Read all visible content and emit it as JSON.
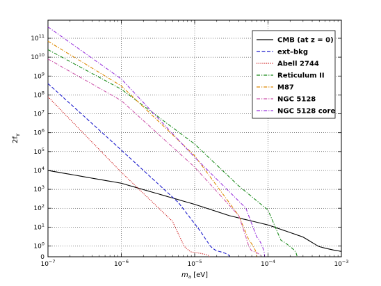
{
  "chart_data": {
    "type": "line",
    "title": "",
    "xlabel_main": "m",
    "xlabel_sub": "a",
    "xlabel_unit": " [eV]",
    "ylabel_main": "2f",
    "ylabel_sub": "γ",
    "x_scale": "log",
    "y_scale": "log-like (symlog near zero)",
    "xlim": [
      1e-07,
      0.001
    ],
    "ylim_label": [
      "0",
      "10^11"
    ],
    "x_ticks": [
      {
        "value": 1e-07,
        "base": "10",
        "exp": "−7"
      },
      {
        "value": 1e-06,
        "base": "10",
        "exp": "−6"
      },
      {
        "value": 1e-05,
        "base": "10",
        "exp": "−5"
      },
      {
        "value": 0.0001,
        "base": "10",
        "exp": "−4"
      },
      {
        "value": 0.001,
        "base": "10",
        "exp": "−3"
      }
    ],
    "y_ticks": [
      {
        "value": 0,
        "base": "0",
        "exp": ""
      },
      {
        "value": 1,
        "base": "10",
        "exp": "0"
      },
      {
        "value": 10,
        "base": "10",
        "exp": "1"
      },
      {
        "value": 100,
        "base": "10",
        "exp": "2"
      },
      {
        "value": 1000,
        "base": "10",
        "exp": "3"
      },
      {
        "value": 10000,
        "base": "10",
        "exp": "4"
      },
      {
        "value": 100000,
        "base": "10",
        "exp": "5"
      },
      {
        "value": 1000000,
        "base": "10",
        "exp": "6"
      },
      {
        "value": 10000000,
        "base": "10",
        "exp": "7"
      },
      {
        "value": 100000000,
        "base": "10",
        "exp": "8"
      },
      {
        "value": 1000000000,
        "base": "10",
        "exp": "9"
      },
      {
        "value": 10000000000,
        "base": "10",
        "exp": "10"
      },
      {
        "value": 100000000000,
        "base": "10",
        "exp": "11"
      }
    ],
    "legend_position": "top-right",
    "series": [
      {
        "name": "CMB (at z = 0)",
        "color": "#000000",
        "dash": "solid",
        "points": [
          [
            1e-07,
            10000
          ],
          [
            1e-06,
            2100
          ],
          [
            1e-05,
            160
          ],
          [
            3e-05,
            40
          ],
          [
            0.0001,
            13
          ],
          [
            0.0003,
            3
          ],
          [
            0.0005,
            0.9
          ],
          [
            0.001,
            0.25
          ]
        ]
      },
      {
        "name": "ext–bkg",
        "color": "#1a1acc",
        "dash": "dashed",
        "points": [
          [
            1e-07,
            400000000.0
          ],
          [
            1e-06,
            120000.0
          ],
          [
            6e-06,
            200
          ],
          [
            1.2e-05,
            6
          ],
          [
            2e-05,
            0.3
          ],
          [
            3e-05,
            0
          ]
        ]
      },
      {
        "name": "Abell 2744",
        "color": "#cc1111",
        "dash": "dotted",
        "points": [
          [
            1e-07,
            80000000.0
          ],
          [
            1e-06,
            8000
          ],
          [
            5e-06,
            20
          ],
          [
            7e-06,
            1.2
          ],
          [
            9e-06,
            0.2
          ],
          [
            1.6e-05,
            0
          ]
        ]
      },
      {
        "name": "Reticulum II",
        "color": "#1a8a1a",
        "dash": "dashdot",
        "points": [
          [
            1e-07,
            25000000000.0
          ],
          [
            1e-06,
            200000000.0
          ],
          [
            1e-05,
            250000.0
          ],
          [
            4e-05,
            1500
          ],
          [
            0.0001,
            80
          ],
          [
            0.00015,
            2
          ],
          [
            0.00025,
            0
          ]
        ]
      },
      {
        "name": "M87",
        "color": "#dd8800",
        "dash": "dashdot",
        "points": [
          [
            1e-07,
            70000000000.0
          ],
          [
            1e-06,
            300000000.0
          ],
          [
            1e-05,
            60000.0
          ],
          [
            4e-05,
            40
          ],
          [
            5.5e-05,
            2
          ],
          [
            7e-05,
            0
          ]
        ]
      },
      {
        "name": "NGC 5128",
        "color": "#cc55aa",
        "dash": "dashdot",
        "points": [
          [
            1e-07,
            8000000000.0
          ],
          [
            1e-06,
            50000000.0
          ],
          [
            1e-05,
            15000.0
          ],
          [
            4e-05,
            40
          ],
          [
            5e-05,
            3
          ],
          [
            6e-05,
            0.3
          ],
          [
            8e-05,
            0
          ]
        ]
      },
      {
        "name": "NGC 5128 core",
        "color": "#9933dd",
        "dash": "dashdot",
        "points": [
          [
            1e-07,
            400000000000.0
          ],
          [
            1e-06,
            700000000.0
          ],
          [
            1e-05,
            50000.0
          ],
          [
            5e-05,
            100
          ],
          [
            7e-05,
            3
          ],
          [
            9e-05,
            0
          ]
        ]
      }
    ]
  }
}
